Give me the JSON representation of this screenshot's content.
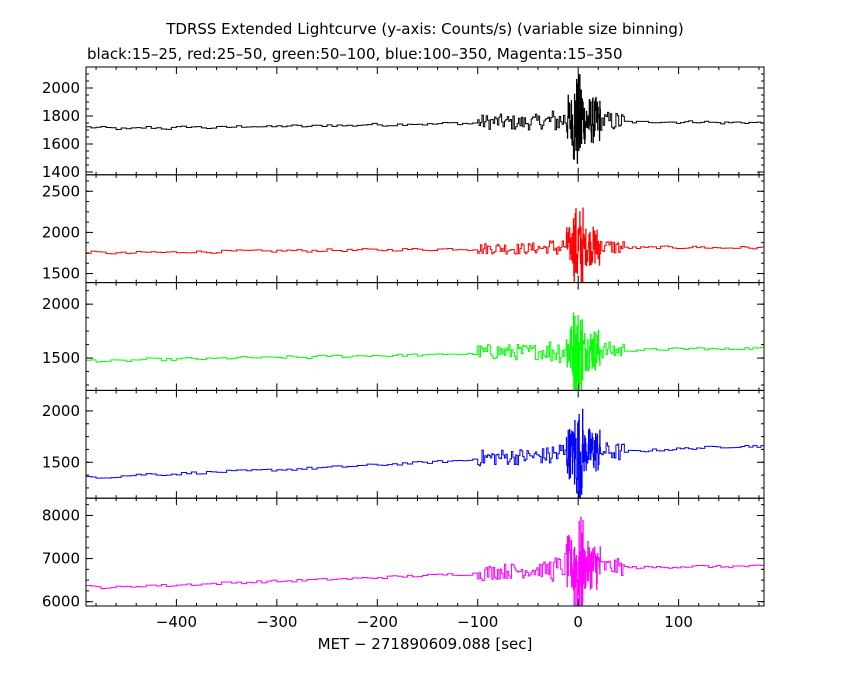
{
  "chart_data": {
    "type": "line",
    "title": "TDRSS Extended Lightcurve (y-axis: Counts/s) (variable size binning)",
    "subtitle": "black:15–25, red:25–50, green:50–100, blue:100–350, Magenta:15–350",
    "xlabel": "MET − 271890609.088 [sec]",
    "xlim": [
      -490,
      185
    ],
    "xticks": [
      -400,
      -300,
      -200,
      -100,
      0,
      100
    ],
    "grid": false,
    "series": [
      {
        "name": "black:15–25",
        "color": "#000000",
        "ylim": [
          1380,
          2150
        ],
        "yticks": [
          1400,
          1600,
          1800,
          2000
        ],
        "x": [
          -490,
          -470,
          -450,
          -430,
          -410,
          -390,
          -370,
          -350,
          -330,
          -310,
          -290,
          -270,
          -250,
          -230,
          -210,
          -190,
          -170,
          -150,
          -130,
          -110,
          -100,
          -80,
          -60,
          -40,
          -20,
          -10,
          0,
          10,
          20,
          40,
          60,
          80,
          100,
          120,
          140,
          160,
          185
        ],
        "values": [
          1720,
          1715,
          1705,
          1720,
          1710,
          1725,
          1715,
          1720,
          1728,
          1722,
          1730,
          1725,
          1735,
          1730,
          1740,
          1735,
          1745,
          1740,
          1750,
          1745,
          1755,
          1760,
          1750,
          1760,
          1765,
          1780,
          1750,
          1770,
          1765,
          1760,
          1755,
          1760,
          1755,
          1760,
          1750,
          1755,
          1750
        ],
        "noise": [
          [
            -100,
            -30,
            55
          ],
          [
            -30,
            -12,
            85
          ],
          [
            -12,
            -5,
            180
          ],
          [
            -5,
            5,
            360
          ],
          [
            5,
            22,
            170
          ],
          [
            22,
            45,
            70
          ]
        ]
      },
      {
        "name": "red:25–50",
        "color": "#ff0000",
        "ylim": [
          1390,
          2700
        ],
        "yticks": [
          1500,
          2000,
          2500
        ],
        "x": [
          -490,
          -470,
          -450,
          -430,
          -410,
          -390,
          -370,
          -350,
          -330,
          -310,
          -290,
          -270,
          -250,
          -230,
          -210,
          -190,
          -170,
          -150,
          -130,
          -110,
          -100,
          -80,
          -60,
          -40,
          -20,
          -10,
          0,
          10,
          20,
          40,
          60,
          80,
          100,
          120,
          140,
          160,
          185
        ],
        "values": [
          1760,
          1750,
          1745,
          1760,
          1755,
          1765,
          1760,
          1770,
          1775,
          1770,
          1780,
          1775,
          1785,
          1780,
          1790,
          1785,
          1795,
          1790,
          1800,
          1795,
          1800,
          1810,
          1800,
          1810,
          1815,
          1850,
          1800,
          1840,
          1830,
          1820,
          1810,
          1820,
          1815,
          1820,
          1810,
          1815,
          1810
        ],
        "noise": [
          [
            -100,
            -30,
            70
          ],
          [
            -30,
            -12,
            110
          ],
          [
            -12,
            -5,
            230
          ],
          [
            -5,
            5,
            520
          ],
          [
            5,
            22,
            240
          ],
          [
            22,
            45,
            90
          ]
        ]
      },
      {
        "name": "green:50–100",
        "color": "#00ff00",
        "ylim": [
          1200,
          2200
        ],
        "yticks": [
          1500,
          2000
        ],
        "x": [
          -490,
          -470,
          -450,
          -430,
          -410,
          -390,
          -370,
          -350,
          -330,
          -310,
          -290,
          -270,
          -250,
          -230,
          -210,
          -190,
          -170,
          -150,
          -130,
          -110,
          -100,
          -80,
          -60,
          -40,
          -20,
          -10,
          0,
          10,
          20,
          40,
          60,
          80,
          100,
          120,
          140,
          160,
          185
        ],
        "values": [
          1480,
          1470,
          1475,
          1490,
          1485,
          1495,
          1490,
          1500,
          1505,
          1500,
          1510,
          1505,
          1520,
          1515,
          1525,
          1520,
          1530,
          1525,
          1540,
          1535,
          1550,
          1560,
          1555,
          1560,
          1570,
          1580,
          1560,
          1580,
          1575,
          1570,
          1575,
          1580,
          1585,
          1590,
          1580,
          1590,
          1590
        ],
        "noise": [
          [
            -100,
            -30,
            75
          ],
          [
            -30,
            -12,
            120
          ],
          [
            -12,
            -5,
            250
          ],
          [
            -5,
            5,
            420
          ],
          [
            5,
            22,
            200
          ],
          [
            22,
            45,
            80
          ]
        ]
      },
      {
        "name": "blue:100–350",
        "color": "#0000ff",
        "ylim": [
          1150,
          2200
        ],
        "yticks": [
          1500,
          2000
        ],
        "x": [
          -490,
          -470,
          -450,
          -430,
          -410,
          -390,
          -370,
          -350,
          -330,
          -310,
          -290,
          -270,
          -250,
          -230,
          -210,
          -190,
          -170,
          -150,
          -130,
          -110,
          -100,
          -80,
          -60,
          -40,
          -20,
          -10,
          0,
          10,
          20,
          40,
          60,
          80,
          100,
          120,
          140,
          160,
          185
        ],
        "values": [
          1360,
          1355,
          1370,
          1385,
          1380,
          1395,
          1400,
          1410,
          1415,
          1425,
          1430,
          1440,
          1450,
          1460,
          1470,
          1480,
          1490,
          1500,
          1510,
          1520,
          1540,
          1550,
          1555,
          1560,
          1580,
          1600,
          1570,
          1620,
          1610,
          1600,
          1610,
          1620,
          1630,
          1640,
          1650,
          1655,
          1660
        ],
        "noise": [
          [
            -100,
            -30,
            80
          ],
          [
            -30,
            -12,
            130
          ],
          [
            -12,
            -5,
            260
          ],
          [
            -5,
            5,
            460
          ],
          [
            5,
            22,
            220
          ],
          [
            22,
            45,
            90
          ]
        ]
      },
      {
        "name": "Magenta:15–350",
        "color": "#ff00ff",
        "ylim": [
          5900,
          8400
        ],
        "yticks": [
          6000,
          7000,
          8000
        ],
        "x": [
          -490,
          -470,
          -450,
          -430,
          -410,
          -390,
          -370,
          -350,
          -330,
          -310,
          -290,
          -270,
          -250,
          -230,
          -210,
          -190,
          -170,
          -150,
          -130,
          -110,
          -100,
          -80,
          -60,
          -40,
          -20,
          -10,
          0,
          10,
          20,
          40,
          60,
          80,
          100,
          120,
          140,
          160,
          185
        ],
        "values": [
          6350,
          6330,
          6340,
          6380,
          6370,
          6400,
          6410,
          6440,
          6450,
          6470,
          6480,
          6500,
          6520,
          6530,
          6550,
          6570,
          6590,
          6610,
          6630,
          6640,
          6650,
          6700,
          6720,
          6740,
          6760,
          6900,
          6700,
          6850,
          6820,
          6800,
          6790,
          6800,
          6810,
          6820,
          6810,
          6820,
          6820
        ],
        "noise": [
          [
            -100,
            -30,
            180
          ],
          [
            -30,
            -12,
            300
          ],
          [
            -12,
            -5,
            650
          ],
          [
            -5,
            5,
            1250
          ],
          [
            5,
            22,
            560
          ],
          [
            22,
            45,
            200
          ]
        ]
      }
    ]
  }
}
